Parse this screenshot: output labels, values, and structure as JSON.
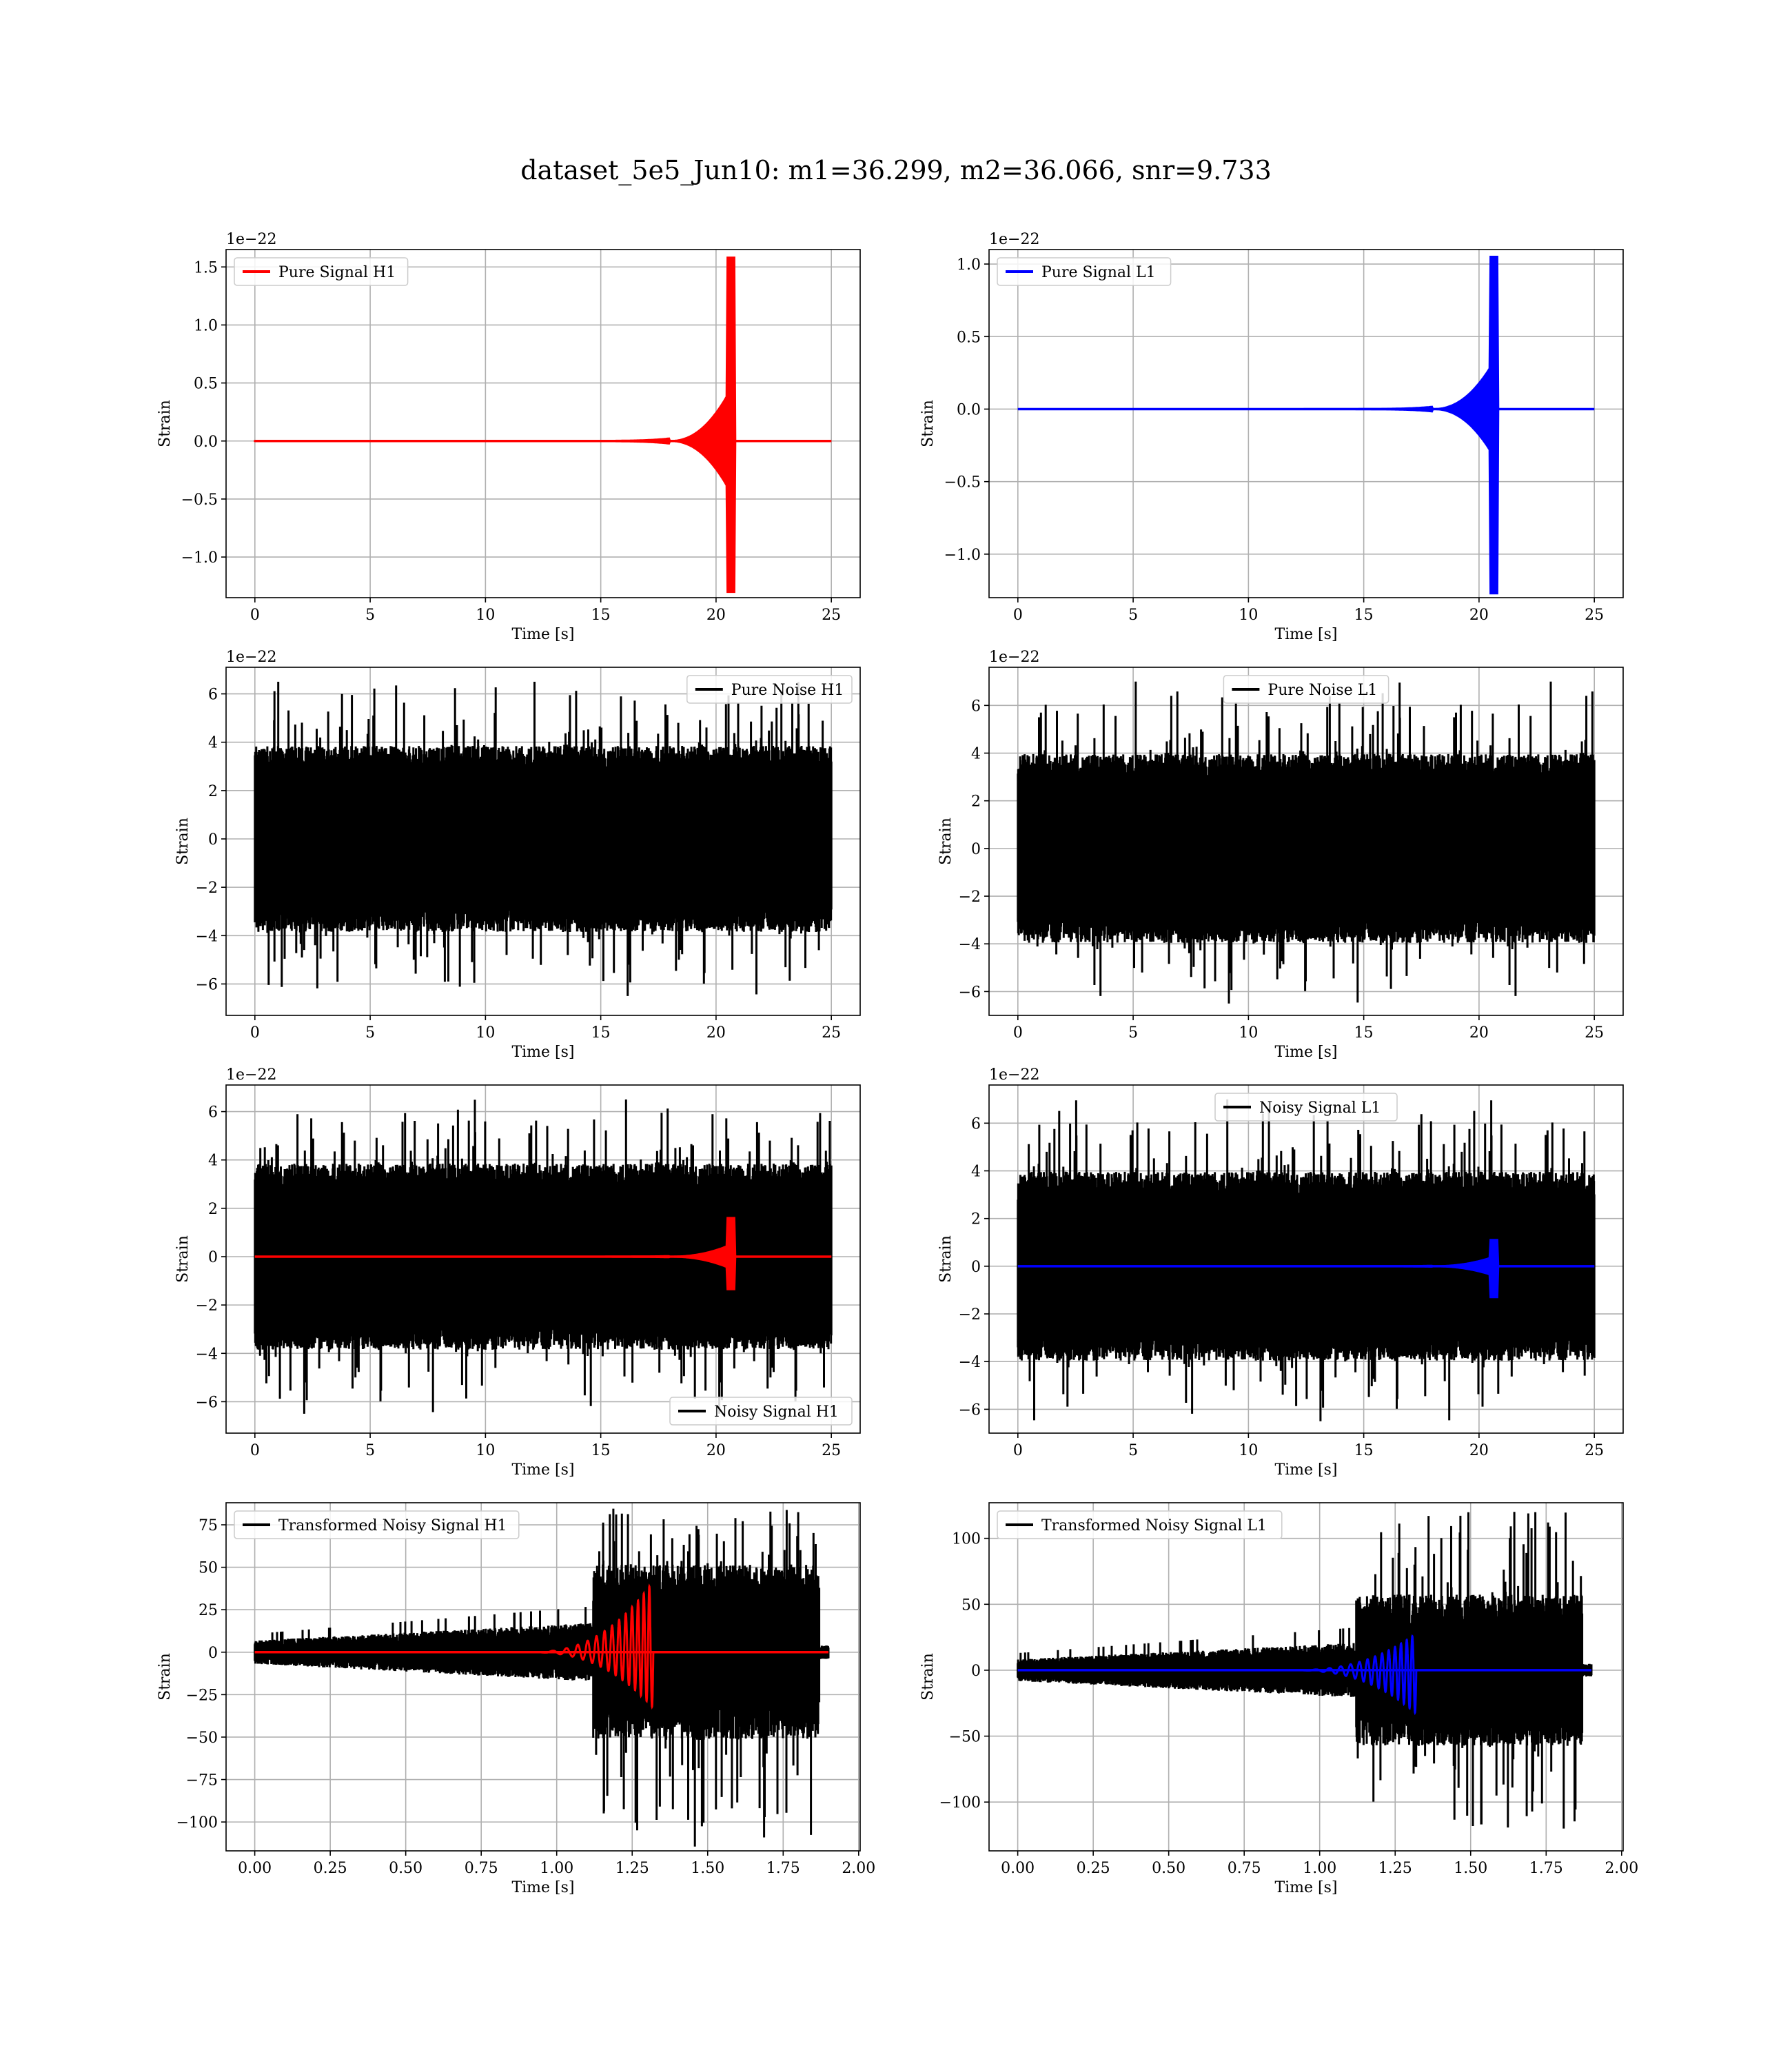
{
  "suptitle": "dataset_5e5_Jun10: m1=36.299, m2=36.066, snr=9.733",
  "chart_data": [
    {
      "id": "pure-signal-h1",
      "type": "line",
      "xlabel": "Time [s]",
      "ylabel": "Strain",
      "offset_text": "1e−22",
      "xlim": [
        -1.25,
        26.25
      ],
      "ylim": [
        -1.35,
        1.65
      ],
      "xticks": [
        0,
        5,
        10,
        15,
        20,
        25
      ],
      "xtick_labels": [
        "0",
        "5",
        "10",
        "15",
        "20",
        "25"
      ],
      "yticks": [
        -1.0,
        -0.5,
        0.0,
        0.5,
        1.0,
        1.5
      ],
      "ytick_labels": [
        "−1.0",
        "−0.5",
        "0.0",
        "0.5",
        "1.0",
        "1.5"
      ],
      "grid": true,
      "legend_position": "upper-left",
      "series": [
        {
          "name": "Pure Signal H1",
          "color": "#ff0000",
          "kind": "chirp",
          "x_start": 0,
          "x_end": 25,
          "t_merge": 20.65,
          "peak_pos": 1.58,
          "peak_neg": -1.3,
          "mid_amp": 0.45,
          "x_onset": 18.0
        }
      ]
    },
    {
      "id": "pure-signal-l1",
      "type": "line",
      "xlabel": "Time [s]",
      "ylabel": "Strain",
      "offset_text": "1e−22",
      "xlim": [
        -1.25,
        26.25
      ],
      "ylim": [
        -1.3,
        1.1
      ],
      "xticks": [
        0,
        5,
        10,
        15,
        20,
        25
      ],
      "xtick_labels": [
        "0",
        "5",
        "10",
        "15",
        "20",
        "25"
      ],
      "yticks": [
        -1.0,
        -0.5,
        0.0,
        0.5,
        1.0
      ],
      "ytick_labels": [
        "−1.0",
        "−0.5",
        "0.0",
        "0.5",
        "1.0"
      ],
      "grid": true,
      "legend_position": "upper-left",
      "series": [
        {
          "name": "Pure Signal L1",
          "color": "#0000ff",
          "kind": "chirp",
          "x_start": 0,
          "x_end": 25,
          "t_merge": 20.65,
          "peak_pos": 1.05,
          "peak_neg": -1.27,
          "mid_amp": 0.33,
          "x_onset": 18.0
        }
      ]
    },
    {
      "id": "pure-noise-h1",
      "type": "line",
      "xlabel": "Time [s]",
      "ylabel": "Strain",
      "offset_text": "1e−22",
      "xlim": [
        -1.25,
        26.25
      ],
      "ylim": [
        -7.3,
        7.1
      ],
      "xticks": [
        0,
        5,
        10,
        15,
        20,
        25
      ],
      "xtick_labels": [
        "0",
        "5",
        "10",
        "15",
        "20",
        "25"
      ],
      "yticks": [
        -6,
        -4,
        -2,
        0,
        2,
        4,
        6
      ],
      "ytick_labels": [
        "−6",
        "−4",
        "−2",
        "0",
        "2",
        "4",
        "6"
      ],
      "grid": true,
      "legend_position": "upper-right",
      "series": [
        {
          "name": "Pure Noise H1",
          "color": "#000000",
          "kind": "noise",
          "x_start": 0,
          "x_end": 25,
          "band": 3.5,
          "max": 6.5,
          "min": -6.5
        }
      ]
    },
    {
      "id": "pure-noise-l1",
      "type": "line",
      "xlabel": "Time [s]",
      "ylabel": "Strain",
      "offset_text": "1e−22",
      "xlim": [
        -1.25,
        26.25
      ],
      "ylim": [
        -7.0,
        7.6
      ],
      "xticks": [
        0,
        5,
        10,
        15,
        20,
        25
      ],
      "xtick_labels": [
        "0",
        "5",
        "10",
        "15",
        "20",
        "25"
      ],
      "yticks": [
        -6,
        -4,
        -2,
        0,
        2,
        4,
        6
      ],
      "ytick_labels": [
        "−6",
        "−4",
        "−2",
        "0",
        "2",
        "4",
        "6"
      ],
      "grid": true,
      "legend_position": "upper-center",
      "series": [
        {
          "name": "Pure Noise L1",
          "color": "#000000",
          "kind": "noise",
          "x_start": 0,
          "x_end": 25,
          "band": 3.6,
          "max": 7.0,
          "min": -6.5
        }
      ]
    },
    {
      "id": "noisy-signal-h1",
      "type": "line",
      "xlabel": "Time [s]",
      "ylabel": "Strain",
      "offset_text": "1e−22",
      "xlim": [
        -1.25,
        26.25
      ],
      "ylim": [
        -7.3,
        7.1
      ],
      "xticks": [
        0,
        5,
        10,
        15,
        20,
        25
      ],
      "xtick_labels": [
        "0",
        "5",
        "10",
        "15",
        "20",
        "25"
      ],
      "yticks": [
        -6,
        -4,
        -2,
        0,
        2,
        4,
        6
      ],
      "ytick_labels": [
        "−6",
        "−4",
        "−2",
        "0",
        "2",
        "4",
        "6"
      ],
      "grid": true,
      "legend_position": "lower-right",
      "series": [
        {
          "name": "Noisy Signal H1",
          "color": "#000000",
          "kind": "noise",
          "x_start": 0,
          "x_end": 25,
          "band": 3.5,
          "max": 6.5,
          "min": -6.5
        },
        {
          "color": "#ff0000",
          "kind": "chirp",
          "x_start": 0,
          "x_end": 25,
          "t_merge": 20.65,
          "peak_pos": 1.6,
          "peak_neg": -1.35,
          "mid_amp": 0.5,
          "x_onset": 18.0
        }
      ]
    },
    {
      "id": "noisy-signal-l1",
      "type": "line",
      "xlabel": "Time [s]",
      "ylabel": "Strain",
      "offset_text": "1e−22",
      "xlim": [
        -1.25,
        26.25
      ],
      "ylim": [
        -7.0,
        7.6
      ],
      "xticks": [
        0,
        5,
        10,
        15,
        20,
        25
      ],
      "xtick_labels": [
        "0",
        "5",
        "10",
        "15",
        "20",
        "25"
      ],
      "yticks": [
        -6,
        -4,
        -2,
        0,
        2,
        4,
        6
      ],
      "ytick_labels": [
        "−6",
        "−4",
        "−2",
        "0",
        "2",
        "4",
        "6"
      ],
      "grid": true,
      "legend_position": "upper-center",
      "series": [
        {
          "name": "Noisy Signal L1",
          "color": "#000000",
          "kind": "noise",
          "x_start": 0,
          "x_end": 25,
          "band": 3.6,
          "max": 7.0,
          "min": -6.5
        },
        {
          "color": "#0000ff",
          "kind": "chirp",
          "x_start": 0,
          "x_end": 25,
          "t_merge": 20.65,
          "peak_pos": 1.1,
          "peak_neg": -1.3,
          "mid_amp": 0.4,
          "x_onset": 18.0
        }
      ]
    },
    {
      "id": "transformed-noisy-signal-h1",
      "type": "line",
      "xlabel": "Time [s]",
      "ylabel": "Strain",
      "offset_text": "",
      "xlim": [
        -0.095,
        2.005
      ],
      "ylim": [
        -117,
        88
      ],
      "xticks": [
        0,
        0.25,
        0.5,
        0.75,
        1.0,
        1.25,
        1.5,
        1.75,
        2.0
      ],
      "xtick_labels": [
        "0.00",
        "0.25",
        "0.50",
        "0.75",
        "1.00",
        "1.25",
        "1.50",
        "1.75",
        "2.00"
      ],
      "yticks": [
        -100,
        -75,
        -50,
        -25,
        0,
        25,
        50,
        75
      ],
      "ytick_labels": [
        "−100",
        "−75",
        "−50",
        "−25",
        "0",
        "25",
        "50",
        "75"
      ],
      "grid": true,
      "legend_position": "upper-left",
      "series": [
        {
          "name": "Transformed Noisy Signal H1",
          "color": "#000000",
          "kind": "tnoise",
          "x_start": 0,
          "x_end": 1.9,
          "x_jump": 1.12,
          "x_drop": 1.87,
          "low_band": 10,
          "high_band": 45,
          "max": 85,
          "min": -115
        },
        {
          "color": "#ff0000",
          "kind": "tchirp",
          "x_start": 0,
          "x_end": 1.9,
          "t_merge": 1.32,
          "peak_pos": 42,
          "peak_neg": -33,
          "x_onset": 0.9
        }
      ]
    },
    {
      "id": "transformed-noisy-signal-l1",
      "type": "line",
      "xlabel": "Time [s]",
      "ylabel": "Strain",
      "offset_text": "",
      "xlim": [
        -0.095,
        2.005
      ],
      "ylim": [
        -137,
        127
      ],
      "xticks": [
        0,
        0.25,
        0.5,
        0.75,
        1.0,
        1.25,
        1.5,
        1.75,
        2.0
      ],
      "xtick_labels": [
        "0.00",
        "0.25",
        "0.50",
        "0.75",
        "1.00",
        "1.25",
        "1.50",
        "1.75",
        "2.00"
      ],
      "yticks": [
        -100,
        -50,
        0,
        50,
        100
      ],
      "ytick_labels": [
        "−100",
        "−50",
        "0",
        "50",
        "100"
      ],
      "grid": true,
      "legend_position": "upper-left",
      "series": [
        {
          "name": "Transformed Noisy Signal L1",
          "color": "#000000",
          "kind": "tnoise",
          "x_start": 0,
          "x_end": 1.9,
          "x_jump": 1.12,
          "x_drop": 1.87,
          "low_band": 12,
          "high_band": 50,
          "max": 122,
          "min": -125
        },
        {
          "color": "#0000ff",
          "kind": "tchirp",
          "x_start": 0,
          "x_end": 1.9,
          "t_merge": 1.32,
          "peak_pos": 28,
          "peak_neg": -33,
          "x_onset": 0.9
        }
      ]
    }
  ]
}
